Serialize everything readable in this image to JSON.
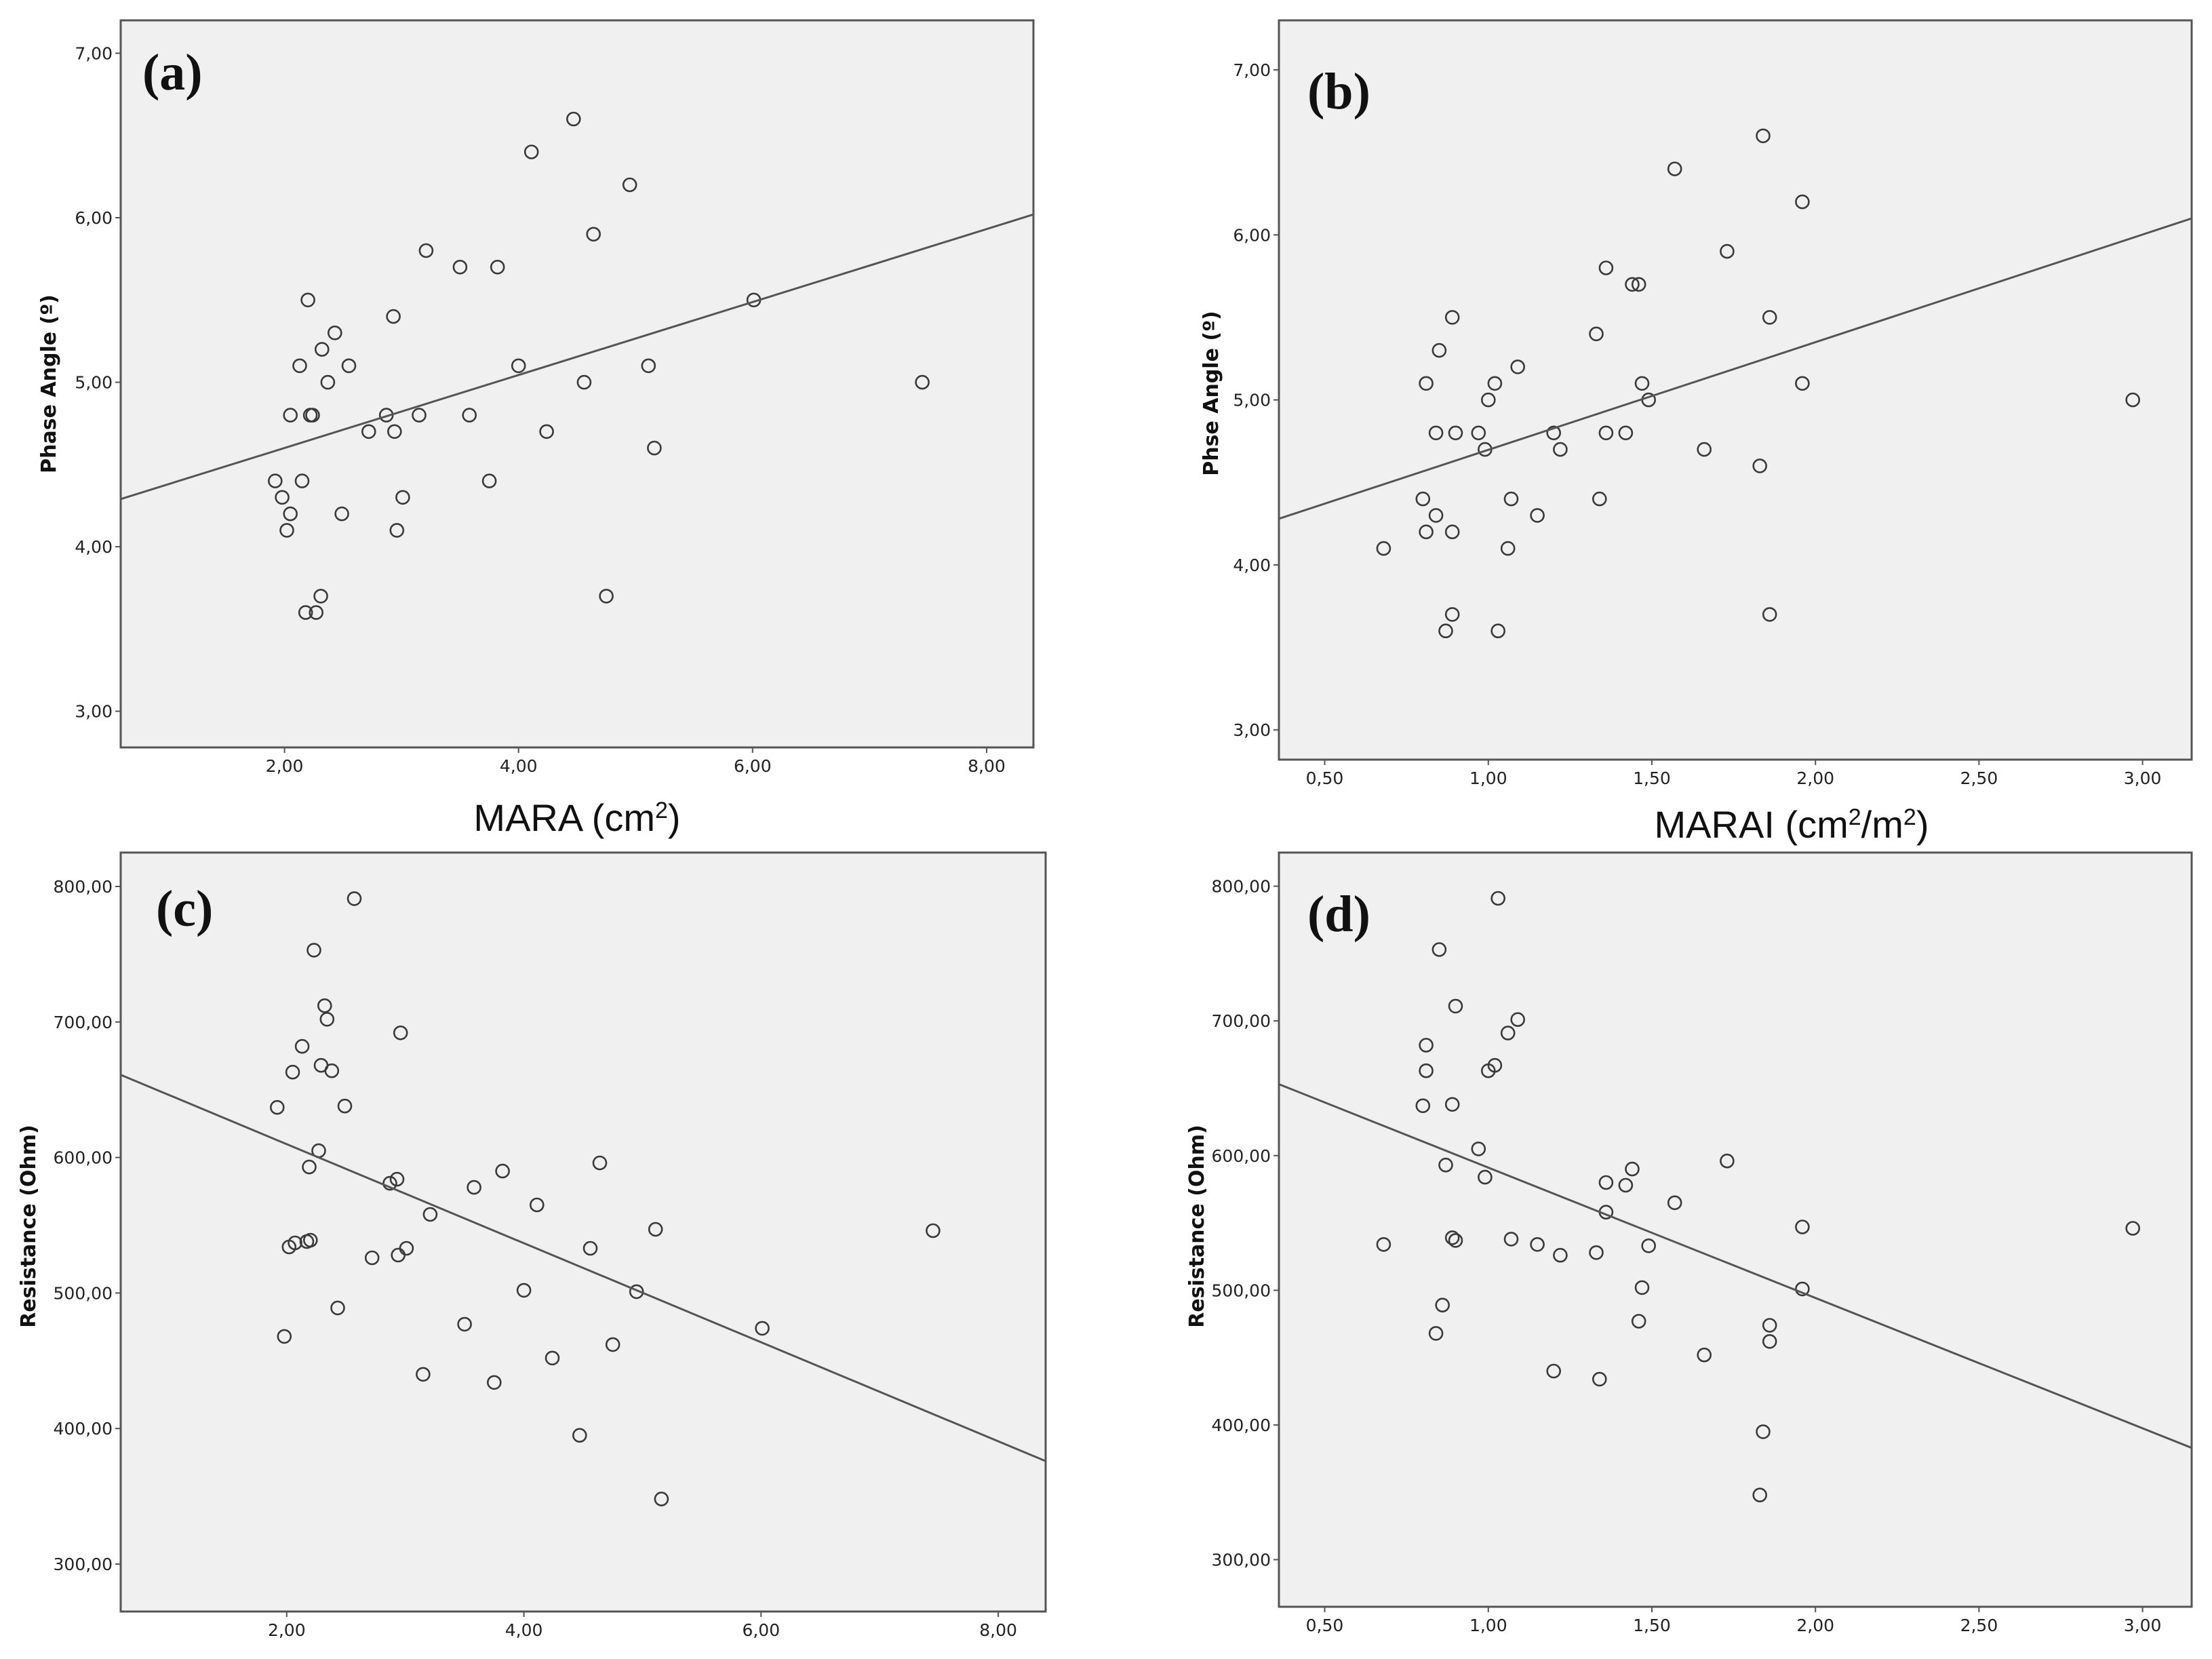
{
  "figure": {
    "style": {
      "plot_bg": "#f0f0f0",
      "frame": "#555555",
      "point_stroke": "#3a3a3a",
      "line_color": "#555555",
      "text": "#111111"
    }
  },
  "chart_data": [
    {
      "id": "a",
      "type": "scatter",
      "panel_label": "(a)",
      "title": "",
      "xlabel": "MARA (cm",
      "xlabel_sup": "2",
      "xlabel_end": ")",
      "ylabel": "Phase Angle (º)",
      "xlim": [
        0.6,
        8.4
      ],
      "ylim": [
        2.78,
        7.2
      ],
      "xticks": [
        2,
        4,
        6,
        8
      ],
      "xtick_labels": [
        "2,00",
        "4,00",
        "6,00",
        "8,00"
      ],
      "yticks": [
        3,
        4,
        5,
        6,
        7
      ],
      "ytick_labels": [
        "3,00",
        "4,00",
        "5,00",
        "6,00",
        "7,00"
      ],
      "fit_line": {
        "x": [
          0.6,
          8.4
        ],
        "y": [
          4.29,
          6.02
        ]
      },
      "points": [
        [
          1.92,
          4.4
        ],
        [
          1.98,
          4.3
        ],
        [
          2.02,
          4.1
        ],
        [
          2.05,
          4.2
        ],
        [
          2.05,
          4.8
        ],
        [
          2.13,
          5.1
        ],
        [
          2.15,
          4.4
        ],
        [
          2.18,
          3.6
        ],
        [
          2.2,
          5.5
        ],
        [
          2.22,
          4.8
        ],
        [
          2.24,
          4.8
        ],
        [
          2.27,
          3.6
        ],
        [
          2.31,
          3.7
        ],
        [
          2.32,
          5.2
        ],
        [
          2.37,
          5.0
        ],
        [
          2.43,
          5.3
        ],
        [
          2.49,
          4.2
        ],
        [
          2.55,
          5.1
        ],
        [
          2.72,
          4.7
        ],
        [
          2.87,
          4.8
        ],
        [
          2.93,
          5.4
        ],
        [
          2.94,
          4.7
        ],
        [
          2.96,
          4.1
        ],
        [
          3.01,
          4.3
        ],
        [
          3.15,
          4.8
        ],
        [
          3.21,
          5.8
        ],
        [
          3.5,
          5.7
        ],
        [
          3.58,
          4.8
        ],
        [
          3.75,
          4.4
        ],
        [
          3.82,
          5.7
        ],
        [
          4.0,
          5.1
        ],
        [
          4.11,
          6.4
        ],
        [
          4.24,
          4.7
        ],
        [
          4.47,
          6.6
        ],
        [
          4.56,
          5.0
        ],
        [
          4.64,
          5.9
        ],
        [
          4.75,
          3.7
        ],
        [
          4.95,
          6.2
        ],
        [
          5.11,
          5.1
        ],
        [
          5.16,
          4.6
        ],
        [
          6.01,
          5.5
        ],
        [
          7.45,
          5.0
        ]
      ]
    },
    {
      "id": "b",
      "type": "scatter",
      "panel_label": "(b)",
      "title": "",
      "xlabel": "MARAI (cm",
      "xlabel_sup": "2",
      "xlabel_mid": "/m",
      "xlabel_sup2": "2",
      "xlabel_end": ")",
      "ylabel": "Phse Angle (º)",
      "xlim": [
        0.36,
        3.15
      ],
      "ylim": [
        2.82,
        7.3
      ],
      "xticks": [
        0.5,
        1.0,
        1.5,
        2.0,
        2.5,
        3.0
      ],
      "xtick_labels": [
        "0,50",
        "1,00",
        "1,50",
        "2,00",
        "2,50",
        "3,00"
      ],
      "yticks": [
        3,
        4,
        5,
        6,
        7
      ],
      "ytick_labels": [
        "3,00",
        "4,00",
        "5,00",
        "6,00",
        "7,00"
      ],
      "fit_line": {
        "x": [
          0.36,
          3.15
        ],
        "y": [
          4.28,
          6.1
        ]
      },
      "points": [
        [
          0.68,
          4.1
        ],
        [
          0.8,
          4.4
        ],
        [
          0.81,
          5.1
        ],
        [
          0.81,
          4.2
        ],
        [
          0.84,
          4.3
        ],
        [
          0.84,
          4.8
        ],
        [
          0.85,
          5.3
        ],
        [
          0.87,
          3.6
        ],
        [
          0.89,
          4.2
        ],
        [
          0.89,
          5.5
        ],
        [
          0.89,
          3.7
        ],
        [
          0.9,
          4.8
        ],
        [
          0.97,
          4.8
        ],
        [
          0.99,
          4.7
        ],
        [
          1.0,
          5.0
        ],
        [
          1.02,
          5.1
        ],
        [
          1.03,
          3.6
        ],
        [
          1.06,
          4.1
        ],
        [
          1.07,
          4.4
        ],
        [
          1.09,
          5.2
        ],
        [
          1.15,
          4.3
        ],
        [
          1.2,
          4.8
        ],
        [
          1.22,
          4.7
        ],
        [
          1.33,
          5.4
        ],
        [
          1.34,
          4.4
        ],
        [
          1.36,
          4.8
        ],
        [
          1.36,
          5.8
        ],
        [
          1.42,
          4.8
        ],
        [
          1.44,
          5.7
        ],
        [
          1.46,
          5.7
        ],
        [
          1.47,
          5.1
        ],
        [
          1.49,
          5.0
        ],
        [
          1.57,
          6.4
        ],
        [
          1.66,
          4.7
        ],
        [
          1.73,
          5.9
        ],
        [
          1.83,
          4.6
        ],
        [
          1.84,
          6.6
        ],
        [
          1.86,
          5.5
        ],
        [
          1.86,
          3.7
        ],
        [
          1.96,
          6.2
        ],
        [
          1.96,
          5.1
        ],
        [
          2.97,
          5.0
        ]
      ]
    },
    {
      "id": "c",
      "type": "scatter",
      "panel_label": "(c)",
      "title": "",
      "xlabel": "",
      "ylabel": "Resistance (Ohm)",
      "xlim": [
        0.6,
        8.4
      ],
      "ylim": [
        265,
        825
      ],
      "xticks": [
        2,
        4,
        6,
        8
      ],
      "xtick_labels": [
        "2,00",
        "4,00",
        "6,00",
        "8,00"
      ],
      "yticks": [
        300,
        400,
        500,
        600,
        700,
        800
      ],
      "ytick_labels": [
        "300,00",
        "400,00",
        "500,00",
        "600,00",
        "700,00",
        "800,00"
      ],
      "fit_line": {
        "x": [
          0.6,
          8.4
        ],
        "y": [
          661,
          376
        ]
      },
      "points": [
        [
          1.92,
          637
        ],
        [
          1.98,
          468
        ],
        [
          2.02,
          534
        ],
        [
          2.05,
          663
        ],
        [
          2.07,
          537
        ],
        [
          2.13,
          682
        ],
        [
          2.17,
          538
        ],
        [
          2.19,
          593
        ],
        [
          2.2,
          539
        ],
        [
          2.23,
          753
        ],
        [
          2.27,
          605
        ],
        [
          2.29,
          668
        ],
        [
          2.32,
          712
        ],
        [
          2.34,
          702
        ],
        [
          2.38,
          664
        ],
        [
          2.43,
          489
        ],
        [
          2.49,
          638
        ],
        [
          2.57,
          791
        ],
        [
          2.72,
          526
        ],
        [
          2.87,
          581
        ],
        [
          2.93,
          584
        ],
        [
          2.94,
          528
        ],
        [
          2.96,
          692
        ],
        [
          3.01,
          533
        ],
        [
          3.15,
          440
        ],
        [
          3.21,
          558
        ],
        [
          3.5,
          477
        ],
        [
          3.58,
          578
        ],
        [
          3.75,
          434
        ],
        [
          3.82,
          590
        ],
        [
          4.0,
          502
        ],
        [
          4.11,
          565
        ],
        [
          4.24,
          452
        ],
        [
          4.47,
          395
        ],
        [
          4.56,
          533
        ],
        [
          4.64,
          596
        ],
        [
          4.75,
          462
        ],
        [
          4.95,
          501
        ],
        [
          5.11,
          547
        ],
        [
          5.16,
          348
        ],
        [
          6.01,
          474
        ],
        [
          7.45,
          546
        ]
      ]
    },
    {
      "id": "d",
      "type": "scatter",
      "panel_label": "(d)",
      "title": "",
      "xlabel": "",
      "ylabel": "Resistance (Ohm)",
      "xlim": [
        0.36,
        3.15
      ],
      "ylim": [
        265,
        825
      ],
      "xticks": [
        0.5,
        1.0,
        1.5,
        2.0,
        2.5,
        3.0
      ],
      "xtick_labels": [
        "0,50",
        "1,00",
        "1,50",
        "2,00",
        "2,50",
        "3,00"
      ],
      "yticks": [
        300,
        400,
        500,
        600,
        700,
        800
      ],
      "ytick_labels": [
        "300,00",
        "400,00",
        "500,00",
        "600,00",
        "700,00",
        "800,00"
      ],
      "fit_line": {
        "x": [
          0.36,
          3.15
        ],
        "y": [
          653,
          383
        ]
      },
      "points": [
        [
          0.68,
          534
        ],
        [
          0.8,
          637
        ],
        [
          0.81,
          663
        ],
        [
          0.81,
          682
        ],
        [
          0.84,
          468
        ],
        [
          0.85,
          753
        ],
        [
          0.86,
          489
        ],
        [
          0.87,
          593
        ],
        [
          0.89,
          539
        ],
        [
          0.89,
          638
        ],
        [
          0.9,
          711
        ],
        [
          0.9,
          537
        ],
        [
          0.97,
          605
        ],
        [
          0.99,
          584
        ],
        [
          1.0,
          663
        ],
        [
          1.02,
          667
        ],
        [
          1.03,
          791
        ],
        [
          1.06,
          691
        ],
        [
          1.07,
          538
        ],
        [
          1.09,
          701
        ],
        [
          1.15,
          534
        ],
        [
          1.2,
          440
        ],
        [
          1.22,
          526
        ],
        [
          1.33,
          528
        ],
        [
          1.34,
          434
        ],
        [
          1.36,
          580
        ],
        [
          1.36,
          558
        ],
        [
          1.42,
          578
        ],
        [
          1.44,
          590
        ],
        [
          1.46,
          477
        ],
        [
          1.47,
          502
        ],
        [
          1.49,
          533
        ],
        [
          1.57,
          565
        ],
        [
          1.66,
          452
        ],
        [
          1.73,
          596
        ],
        [
          1.83,
          348
        ],
        [
          1.84,
          395
        ],
        [
          1.86,
          474
        ],
        [
          1.86,
          462
        ],
        [
          1.96,
          547
        ],
        [
          1.96,
          501
        ],
        [
          2.97,
          546
        ]
      ]
    }
  ]
}
